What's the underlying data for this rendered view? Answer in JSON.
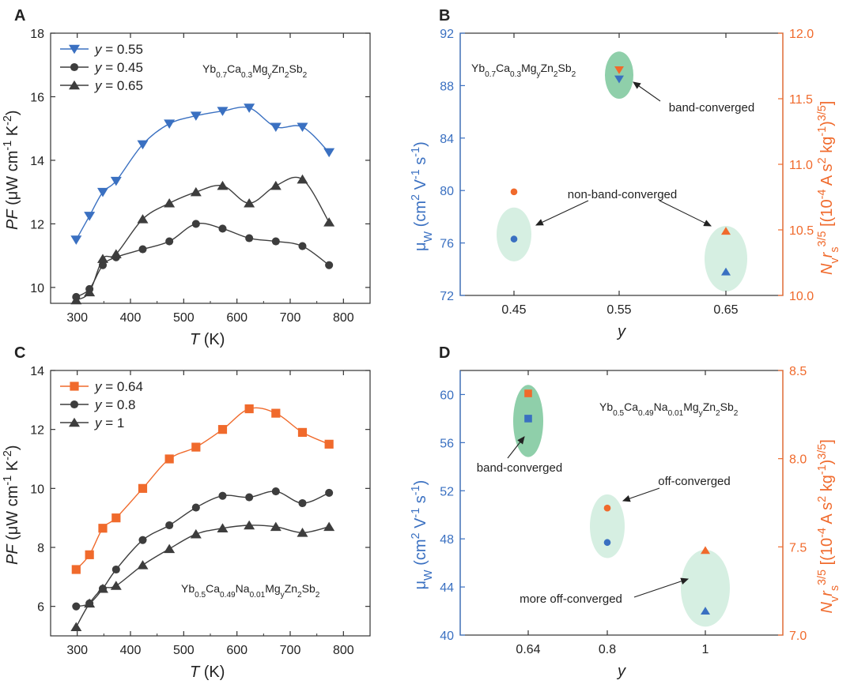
{
  "chart_data": [
    {
      "panel": "A",
      "type": "line",
      "xlabel": "T (K)",
      "ylabel": "PF (μW cm⁻¹ K⁻²)",
      "xlim": [
        250,
        850
      ],
      "ylim": [
        9.5,
        18
      ],
      "xticks": [
        300,
        400,
        500,
        600,
        700,
        800
      ],
      "yticks": [
        10,
        12,
        14,
        16,
        18
      ],
      "compound": "Yb0.7Ca0.3MgyZn2-ySb2",
      "legend_position": "top-left",
      "series": [
        {
          "name": "y = 0.55",
          "marker": "triangle-down",
          "color": "#3a70c1",
          "x": [
            298,
            323,
            348,
            373,
            423,
            473,
            523,
            573,
            623,
            673,
            723,
            773
          ],
          "y": [
            11.5,
            12.25,
            13.0,
            13.35,
            14.5,
            15.15,
            15.4,
            15.55,
            15.65,
            15.05,
            15.05,
            14.25
          ]
        },
        {
          "name": "y = 0.45",
          "marker": "circle",
          "color": "#3d3d3d",
          "x": [
            298,
            323,
            348,
            373,
            423,
            473,
            523,
            573,
            623,
            673,
            723,
            773
          ],
          "y": [
            9.7,
            9.95,
            10.7,
            10.95,
            11.2,
            11.45,
            12.0,
            11.85,
            11.55,
            11.45,
            11.3,
            10.7
          ]
        },
        {
          "name": "y = 0.65",
          "marker": "triangle-up",
          "color": "#3d3d3d",
          "x": [
            298,
            323,
            348,
            373,
            423,
            473,
            523,
            573,
            623,
            673,
            723,
            773
          ],
          "y": [
            9.6,
            9.85,
            10.9,
            11.05,
            12.15,
            12.65,
            13.0,
            13.2,
            12.65,
            13.2,
            13.4,
            12.05
          ]
        }
      ]
    },
    {
      "panel": "B",
      "type": "scatter",
      "xlabel": "y",
      "ylabel_left": "μW (cm² V⁻¹ s⁻¹)",
      "ylabel_right": "Nv rs3/5 [(10⁻⁴ A s² kg⁻¹)3/5]",
      "x_categories": [
        "0.45",
        "0.55",
        "0.65"
      ],
      "ylim_left": [
        72,
        92
      ],
      "ylim_right": [
        10.0,
        12.0
      ],
      "yticks_left": [
        72,
        76,
        80,
        84,
        88,
        92
      ],
      "yticks_right": [
        "10.0",
        "10.5",
        "11.0",
        "11.5",
        "12.0"
      ],
      "compound": "Yb0.7Ca0.3MgyZn2-ySb2",
      "series": [
        {
          "name": "μW",
          "axis": "left",
          "color": "#3a70c1",
          "markers": [
            "circle",
            "triangle-down",
            "triangle-up"
          ],
          "values": [
            76.3,
            88.5,
            73.8
          ]
        },
        {
          "name": "Nv rs3/5",
          "axis": "right",
          "color": "#f06a2c",
          "markers": [
            "circle",
            "triangle-down",
            "triangle-up"
          ],
          "values": [
            10.79,
            11.72,
            10.49
          ]
        }
      ],
      "annotations": [
        "band-converged",
        "non-band-converged"
      ]
    },
    {
      "panel": "C",
      "type": "line",
      "xlabel": "T (K)",
      "ylabel": "PF (μW cm⁻¹ K⁻²)",
      "xlim": [
        250,
        850
      ],
      "ylim": [
        5,
        14
      ],
      "xticks": [
        300,
        400,
        500,
        600,
        700,
        800
      ],
      "yticks": [
        6,
        8,
        10,
        12,
        14
      ],
      "compound": "Yb0.5Ca0.49Na0.01MgyZn2-ySb2",
      "legend_position": "top-left",
      "series": [
        {
          "name": "y = 0.64",
          "marker": "square",
          "color": "#f06a2c",
          "x": [
            298,
            323,
            348,
            373,
            423,
            473,
            523,
            573,
            623,
            673,
            723,
            773
          ],
          "y": [
            7.25,
            7.75,
            8.65,
            9.0,
            10.0,
            11.0,
            11.4,
            12.0,
            12.7,
            12.55,
            11.9,
            11.5
          ]
        },
        {
          "name": "y = 0.8",
          "marker": "circle",
          "color": "#3d3d3d",
          "x": [
            298,
            323,
            348,
            373,
            423,
            473,
            523,
            573,
            623,
            673,
            723,
            773
          ],
          "y": [
            6.0,
            6.1,
            6.6,
            7.25,
            8.25,
            8.75,
            9.35,
            9.75,
            9.7,
            9.9,
            9.5,
            9.85
          ]
        },
        {
          "name": "y = 1",
          "marker": "triangle-up",
          "color": "#3d3d3d",
          "x": [
            298,
            323,
            348,
            373,
            423,
            473,
            523,
            573,
            623,
            673,
            723,
            773
          ],
          "y": [
            5.3,
            6.1,
            6.6,
            6.7,
            7.4,
            7.95,
            8.45,
            8.65,
            8.75,
            8.7,
            8.5,
            8.7
          ]
        }
      ]
    },
    {
      "panel": "D",
      "type": "scatter",
      "xlabel": "y",
      "ylabel_left": "μW (cm² V⁻¹ s⁻¹)",
      "ylabel_right": "Nv rs3/5 [(10⁻⁴ A s² kg⁻¹)3/5]",
      "x_categories": [
        "0.64",
        "0.8",
        "1"
      ],
      "ylim_left": [
        40,
        62
      ],
      "ylim_right": [
        7.0,
        8.5
      ],
      "yticks_left": [
        40,
        44,
        48,
        52,
        56,
        60
      ],
      "yticks_right": [
        "7.0",
        "7.5",
        "8.0",
        "8.5"
      ],
      "compound": "Yb0.5Ca0.49Na0.01MgyZn2-ySb2",
      "series": [
        {
          "name": "μW",
          "axis": "left",
          "color": "#3a70c1",
          "markers": [
            "square",
            "circle",
            "triangle-up"
          ],
          "values": [
            58.0,
            47.7,
            42.0
          ]
        },
        {
          "name": "Nv rs3/5",
          "axis": "right",
          "color": "#f06a2c",
          "markers": [
            "square",
            "circle",
            "triangle-up"
          ],
          "values": [
            8.37,
            7.72,
            7.48
          ]
        }
      ],
      "annotations": [
        "band-converged",
        "off-converged",
        "more off-converged"
      ]
    }
  ],
  "colors": {
    "blue": "#3a70c1",
    "orange": "#f06a2c",
    "dark": "#3d3d3d",
    "ellipse_light": "#d6efe2",
    "ellipse_dark": "#8fcfaa"
  }
}
